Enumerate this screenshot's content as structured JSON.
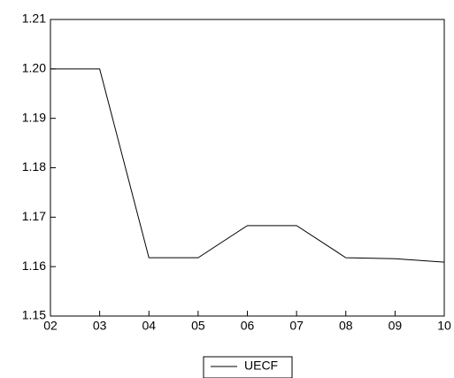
{
  "chart_data": {
    "type": "line",
    "categories": [
      "02",
      "03",
      "04",
      "05",
      "06",
      "07",
      "08",
      "09",
      "10"
    ],
    "series": [
      {
        "name": "UECF",
        "color": "#000000",
        "values": [
          1.2,
          1.2,
          1.1618,
          1.1618,
          1.1683,
          1.1683,
          1.1618,
          1.1616,
          1.1609
        ]
      }
    ],
    "ylim": [
      1.15,
      1.21
    ],
    "yticks": [
      1.15,
      1.16,
      1.17,
      1.18,
      1.19,
      {
        "value": 1.2,
        "label": "1.20"
      },
      1.21
    ],
    "grid": false
  }
}
